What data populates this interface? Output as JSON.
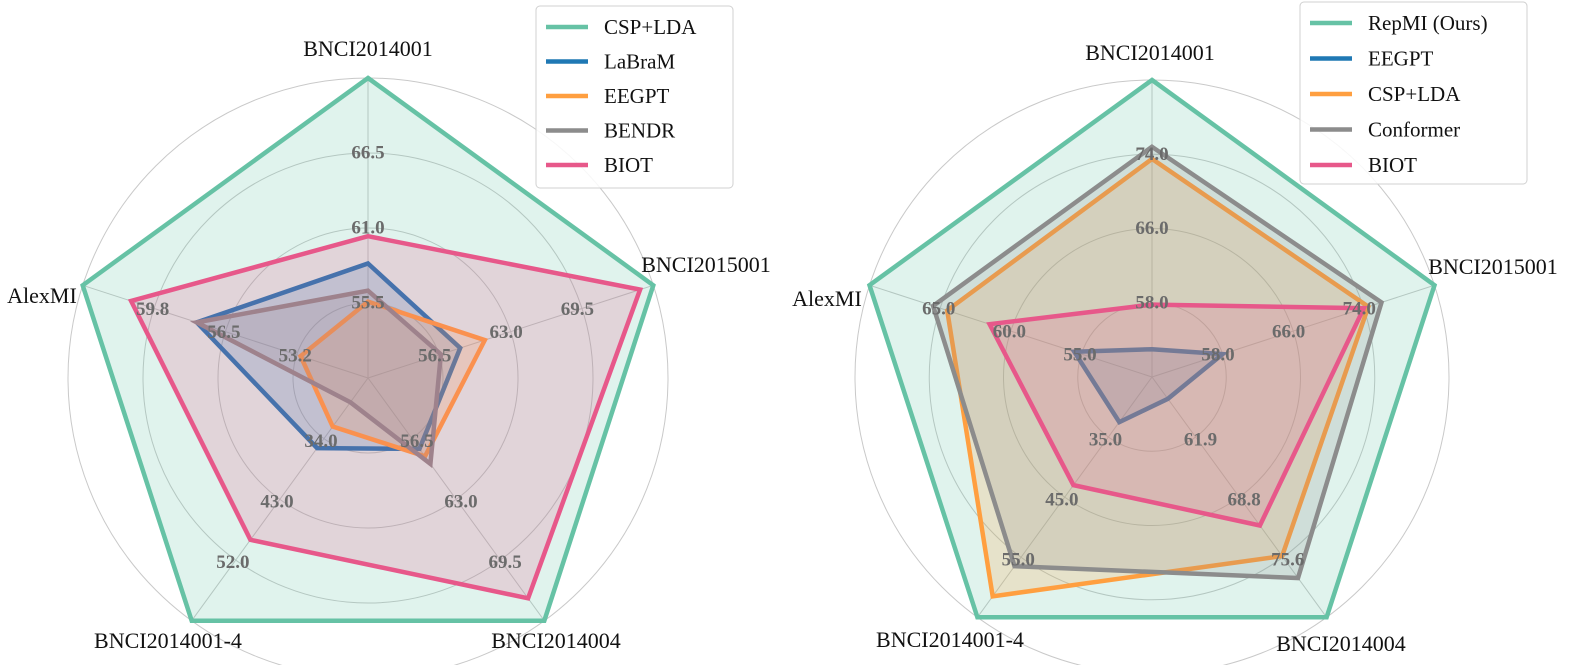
{
  "chart_data": [
    {
      "type": "radar",
      "axes": [
        "BNCI2014001",
        "BNCI2015001",
        "BNCI2014004",
        "BNCI2014001-4",
        "AlexMI"
      ],
      "scale": "linear per axis, 4 rings",
      "axis_ticks": {
        "BNCI2014001": [
          "55.5",
          "61.0",
          "66.5"
        ],
        "BNCI2015001": [
          "56.5",
          "63.0",
          "69.5"
        ],
        "BNCI2014004": [
          "56.5",
          "63.0",
          "69.5"
        ],
        "BNCI2014001-4": [
          "34.0",
          "43.0",
          "52.0"
        ],
        "AlexMI": [
          "53.2",
          "56.5",
          "59.8"
        ]
      },
      "axis_ranges": {
        "BNCI2014001": [
          44.5,
          72.0
        ],
        "BNCI2015001": [
          43.5,
          76.0
        ],
        "BNCI2014004": [
          43.5,
          76.0
        ],
        "BNCI2014001-4": [
          16.0,
          61.0
        ],
        "AlexMI": [
          46.6,
          63.1
        ]
      },
      "series": [
        {
          "name": "CSP+LDA",
          "color": "#66c2a5",
          "values": [
            72.0,
            76.0,
            76.0,
            61.0,
            63.1
          ]
        },
        {
          "name": "LaBraM",
          "color": "#1f78b4",
          "values": [
            55.0,
            54.0,
            53.0,
            29.0,
            56.5
          ]
        },
        {
          "name": "EEGPT",
          "color": "#ff9f40",
          "values": [
            51.5,
            56.8,
            54.0,
            25.0,
            50.5
          ]
        },
        {
          "name": "BENDR",
          "color": "#8c8c8c",
          "values": [
            52.5,
            51.8,
            55.0,
            20.5,
            56.5
          ]
        },
        {
          "name": "BIOT",
          "color": "#e7588a",
          "values": [
            57.5,
            74.5,
            73.0,
            46.0,
            60.3
          ]
        }
      ],
      "legend_position": "top-right",
      "grid": true
    },
    {
      "type": "radar",
      "axes": [
        "BNCI2014001",
        "BNCI2015001",
        "BNCI2014004",
        "BNCI2014001-4",
        "AlexMI"
      ],
      "scale": "linear per axis, 4 rings",
      "axis_ticks": {
        "BNCI2014001": [
          "58.0",
          "66.0",
          "74.0"
        ],
        "BNCI2015001": [
          "58.0",
          "66.0",
          "74.0"
        ],
        "BNCI2014004": [
          "61.9",
          "68.8",
          "75.6"
        ],
        "BNCI2014001-4": [
          "35.0",
          "45.0",
          "55.0"
        ],
        "AlexMI": [
          "55.0",
          "60.0",
          "65.0"
        ]
      },
      "axis_ranges": {
        "BNCI2014001": [
          50.0,
          82.0
        ],
        "BNCI2015001": [
          50.0,
          82.0
        ],
        "BNCI2014004": [
          55.0,
          82.5
        ],
        "BNCI2014001-4": [
          25.0,
          65.0
        ],
        "AlexMI": [
          50.0,
          70.0
        ]
      },
      "series": [
        {
          "name": "RepMI (Ours)",
          "color": "#66c2a5",
          "values": [
            82.0,
            82.0,
            82.5,
            65.0,
            70.0
          ]
        },
        {
          "name": "EEGPT",
          "color": "#1f78b4",
          "values": [
            53.0,
            58.0,
            57.5,
            32.5,
            55.5
          ]
        },
        {
          "name": "CSP+LDA",
          "color": "#ff9f40",
          "values": [
            73.5,
            74.5,
            75.5,
            61.5,
            64.5
          ]
        },
        {
          "name": "Conformer",
          "color": "#8c8c8c",
          "values": [
            74.8,
            76.0,
            78.0,
            56.5,
            65.5
          ]
        },
        {
          "name": "BIOT",
          "color": "#e7588a",
          "values": [
            57.8,
            74.0,
            72.0,
            43.0,
            61.5
          ]
        }
      ],
      "legend_position": "top-right",
      "grid": true
    }
  ]
}
